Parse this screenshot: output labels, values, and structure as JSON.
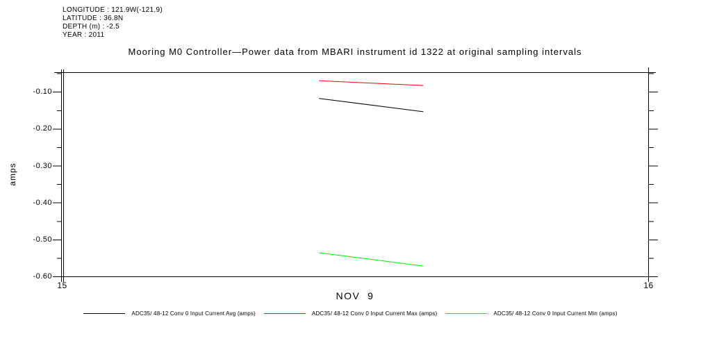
{
  "header": {
    "meta_lines": [
      "LONGITUDE : 121.9W(-121.9)",
      "LATITUDE : 36.8N",
      "DEPTH (m) : -2.5",
      "YEAR : 2011"
    ]
  },
  "title": "Mooring M0 Controller—Power data from MBARI instrument id 1322 at original sampling intervals",
  "chart_data": {
    "type": "line",
    "title": "Mooring M0 Controller—Power data from MBARI instrument id 1322 at original sampling intervals",
    "xlabel": "NOV  9",
    "ylabel": "amps",
    "xlim": [
      15,
      16
    ],
    "ylim": [
      -0.6,
      -0.047
    ],
    "x_ticks": [
      15,
      16
    ],
    "x_tick_labels": [
      "15",
      "16"
    ],
    "y_ticks_major": [
      -0.1,
      -0.2,
      -0.3,
      -0.4,
      -0.5,
      -0.6
    ],
    "y_tick_labels": [
      "-0.10",
      "-0.20",
      "-0.30",
      "-0.40",
      "-0.50",
      "-0.60"
    ],
    "y_ticks_minor": [
      -0.05,
      -0.15,
      -0.25,
      -0.35,
      -0.45,
      -0.55
    ],
    "grid": false,
    "legend_position": "bottom",
    "series": [
      {
        "name": "ADC35/ 48-12 Conv 0 Input Current Avg (amps)",
        "color": "#000000",
        "x": [
          15.438,
          15.616
        ],
        "y": [
          -0.117,
          -0.153
        ]
      },
      {
        "name": "ADC35/ 48-12 Conv 0 Input Current Max (amps)",
        "color": "#ff0000",
        "x": [
          15.438,
          15.616
        ],
        "y": [
          -0.069,
          -0.082
        ]
      },
      {
        "name": "ADC35/ 48-12 Conv 0 Input Current Min (amps)",
        "color": "#00ee00",
        "x": [
          15.438,
          15.616
        ],
        "y": [
          -0.535,
          -0.571
        ]
      }
    ]
  }
}
